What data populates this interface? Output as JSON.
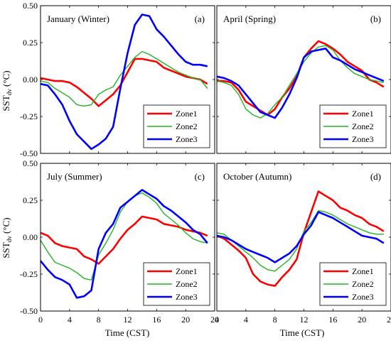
{
  "figure": {
    "ylabel_main": "SST",
    "ylabel_sub": "dv",
    "ylabel_unit": " (°C)",
    "xlabel": "Time (CST)",
    "x_ticks": [
      "0",
      "4",
      "8",
      "12",
      "16",
      "20",
      "24"
    ],
    "y_ticks": [
      "0.50",
      "0.25",
      "0.00",
      "-0.25",
      "-0.50"
    ],
    "legend": [
      "Zone1",
      "Zone2",
      "Zone3"
    ],
    "colors": {
      "zone1": "#ff0000",
      "zone2": "#22b422",
      "zone3": "#0000ff"
    }
  },
  "chart_data": [
    {
      "type": "line",
      "title": "January (Winter)",
      "tag": "(a)",
      "xlim": [
        0,
        24
      ],
      "ylim": [
        -0.5,
        0.5
      ],
      "series": [
        {
          "name": "Zone1",
          "x": [
            0,
            1,
            2,
            3,
            4,
            5,
            6,
            7,
            8,
            9,
            10,
            11,
            12,
            13,
            14,
            15,
            16,
            17,
            18,
            19,
            20,
            21,
            22,
            23
          ],
          "values": [
            0.01,
            0.0,
            -0.01,
            -0.01,
            -0.02,
            -0.05,
            -0.09,
            -0.13,
            -0.18,
            -0.14,
            -0.1,
            -0.04,
            0.05,
            0.14,
            0.14,
            0.13,
            0.12,
            0.08,
            0.06,
            0.04,
            0.02,
            0.01,
            0.0,
            -0.03
          ]
        },
        {
          "name": "Zone2",
          "x": [
            0,
            1,
            2,
            3,
            4,
            5,
            6,
            7,
            8,
            9,
            10,
            11,
            12,
            13,
            14,
            15,
            16,
            17,
            18,
            19,
            20,
            21,
            22,
            23
          ],
          "values": [
            -0.01,
            -0.02,
            -0.06,
            -0.09,
            -0.12,
            -0.17,
            -0.18,
            -0.17,
            -0.1,
            -0.07,
            -0.05,
            0.03,
            0.09,
            0.15,
            0.19,
            0.17,
            0.14,
            0.11,
            0.08,
            0.05,
            0.03,
            0.01,
            0.0,
            -0.06
          ]
        },
        {
          "name": "Zone3",
          "x": [
            0,
            1,
            2,
            3,
            4,
            5,
            6,
            7,
            8,
            9,
            10,
            11,
            12,
            13,
            14,
            15,
            16,
            17,
            18,
            19,
            20,
            21,
            22,
            23
          ],
          "values": [
            -0.03,
            -0.04,
            -0.1,
            -0.17,
            -0.28,
            -0.37,
            -0.42,
            -0.47,
            -0.44,
            -0.4,
            -0.32,
            -0.06,
            0.18,
            0.37,
            0.44,
            0.43,
            0.34,
            0.29,
            0.23,
            0.17,
            0.12,
            0.1,
            0.1,
            0.09
          ]
        }
      ]
    },
    {
      "type": "line",
      "title": "April (Spring)",
      "tag": "(b)",
      "xlim": [
        0,
        24
      ],
      "ylim": [
        -0.5,
        0.5
      ],
      "series": [
        {
          "name": "Zone1",
          "x": [
            0,
            1,
            2,
            3,
            4,
            5,
            6,
            7,
            8,
            9,
            10,
            11,
            12,
            13,
            14,
            15,
            16,
            17,
            18,
            19,
            20,
            21,
            22,
            23
          ],
          "values": [
            -0.01,
            -0.01,
            -0.02,
            -0.07,
            -0.15,
            -0.18,
            -0.21,
            -0.24,
            -0.2,
            -0.12,
            -0.06,
            0.02,
            0.15,
            0.21,
            0.26,
            0.24,
            0.21,
            0.17,
            0.12,
            0.09,
            0.06,
            0.0,
            -0.02,
            -0.05
          ]
        },
        {
          "name": "Zone2",
          "x": [
            0,
            1,
            2,
            3,
            4,
            5,
            6,
            7,
            8,
            9,
            10,
            11,
            12,
            13,
            14,
            15,
            16,
            17,
            18,
            19,
            20,
            21,
            22,
            23
          ],
          "values": [
            -0.01,
            -0.02,
            -0.04,
            -0.1,
            -0.2,
            -0.24,
            -0.26,
            -0.23,
            -0.17,
            -0.12,
            -0.04,
            0.04,
            0.12,
            0.18,
            0.22,
            0.23,
            0.2,
            0.13,
            0.08,
            0.04,
            0.02,
            0.0,
            -0.01,
            -0.02
          ]
        },
        {
          "name": "Zone3",
          "x": [
            0,
            1,
            2,
            3,
            4,
            5,
            6,
            7,
            8,
            9,
            10,
            11,
            12,
            13,
            14,
            15,
            16,
            17,
            18,
            19,
            20,
            21,
            22,
            23
          ],
          "values": [
            0.02,
            0.01,
            -0.01,
            -0.04,
            -0.1,
            -0.16,
            -0.22,
            -0.24,
            -0.26,
            -0.19,
            -0.1,
            0.01,
            0.15,
            0.19,
            0.2,
            0.21,
            0.15,
            0.13,
            0.1,
            0.07,
            0.05,
            0.03,
            0.01,
            -0.01
          ]
        }
      ]
    },
    {
      "type": "line",
      "title": "July (Summer)",
      "tag": "(c)",
      "xlim": [
        0,
        24
      ],
      "ylim": [
        -0.5,
        0.5
      ],
      "series": [
        {
          "name": "Zone1",
          "x": [
            0,
            1,
            2,
            3,
            4,
            5,
            6,
            7,
            8,
            9,
            10,
            11,
            12,
            13,
            14,
            15,
            16,
            17,
            18,
            19,
            20,
            21,
            22,
            23
          ],
          "values": [
            0.03,
            0.01,
            -0.04,
            -0.06,
            -0.07,
            -0.08,
            -0.13,
            -0.15,
            -0.18,
            -0.13,
            -0.08,
            -0.01,
            0.05,
            0.09,
            0.14,
            0.13,
            0.12,
            0.09,
            0.08,
            0.07,
            0.05,
            0.04,
            0.03,
            0.01
          ]
        },
        {
          "name": "Zone2",
          "x": [
            0,
            1,
            2,
            3,
            4,
            5,
            6,
            7,
            8,
            9,
            10,
            11,
            12,
            13,
            14,
            15,
            16,
            17,
            18,
            19,
            20,
            21,
            22,
            23
          ],
          "values": [
            -0.02,
            -0.1,
            -0.17,
            -0.19,
            -0.21,
            -0.24,
            -0.28,
            -0.29,
            -0.12,
            -0.04,
            0.05,
            0.17,
            0.24,
            0.28,
            0.3,
            0.27,
            0.23,
            0.16,
            0.12,
            0.08,
            0.03,
            -0.01,
            -0.03,
            -0.04
          ]
        },
        {
          "name": "Zone3",
          "x": [
            0,
            1,
            2,
            3,
            4,
            5,
            6,
            7,
            8,
            9,
            10,
            11,
            12,
            13,
            14,
            15,
            16,
            17,
            18,
            19,
            20,
            21,
            22,
            23
          ],
          "values": [
            -0.16,
            -0.22,
            -0.27,
            -0.29,
            -0.32,
            -0.41,
            -0.4,
            -0.36,
            -0.08,
            0.03,
            0.09,
            0.2,
            0.24,
            0.28,
            0.32,
            0.29,
            0.26,
            0.21,
            0.18,
            0.14,
            0.1,
            0.05,
            0.02,
            -0.04
          ]
        }
      ]
    },
    {
      "type": "line",
      "title": "October (Autumn)",
      "tag": "(d)",
      "xlim": [
        0,
        24
      ],
      "ylim": [
        -0.5,
        0.5
      ],
      "series": [
        {
          "name": "Zone1",
          "x": [
            0,
            1,
            2,
            3,
            4,
            5,
            6,
            7,
            8,
            9,
            10,
            11,
            12,
            13,
            14,
            15,
            16,
            17,
            18,
            19,
            20,
            21,
            22,
            23
          ],
          "values": [
            0.01,
            -0.01,
            -0.05,
            -0.09,
            -0.14,
            -0.25,
            -0.3,
            -0.32,
            -0.33,
            -0.27,
            -0.22,
            -0.15,
            0.03,
            0.17,
            0.31,
            0.28,
            0.25,
            0.2,
            0.18,
            0.15,
            0.13,
            0.09,
            0.07,
            0.04
          ]
        },
        {
          "name": "Zone2",
          "x": [
            0,
            1,
            2,
            3,
            4,
            5,
            6,
            7,
            8,
            9,
            10,
            11,
            12,
            13,
            14,
            15,
            16,
            17,
            18,
            19,
            20,
            21,
            22,
            23
          ],
          "values": [
            0.03,
            0.02,
            -0.02,
            -0.06,
            -0.1,
            -0.14,
            -0.19,
            -0.22,
            -0.23,
            -0.19,
            -0.15,
            -0.08,
            0.04,
            0.1,
            0.18,
            0.17,
            0.15,
            0.12,
            0.09,
            0.07,
            0.05,
            0.03,
            0.02,
            0.02
          ]
        },
        {
          "name": "Zone3",
          "x": [
            0,
            1,
            2,
            3,
            4,
            5,
            6,
            7,
            8,
            9,
            10,
            11,
            12,
            13,
            14,
            15,
            16,
            17,
            18,
            19,
            20,
            21,
            22,
            23
          ],
          "values": [
            0.01,
            0.0,
            -0.02,
            -0.05,
            -0.08,
            -0.1,
            -0.12,
            -0.14,
            -0.17,
            -0.14,
            -0.11,
            -0.06,
            0.02,
            0.08,
            0.17,
            0.15,
            0.13,
            0.1,
            0.07,
            0.04,
            0.01,
            0.0,
            -0.01,
            -0.04
          ]
        }
      ]
    }
  ]
}
